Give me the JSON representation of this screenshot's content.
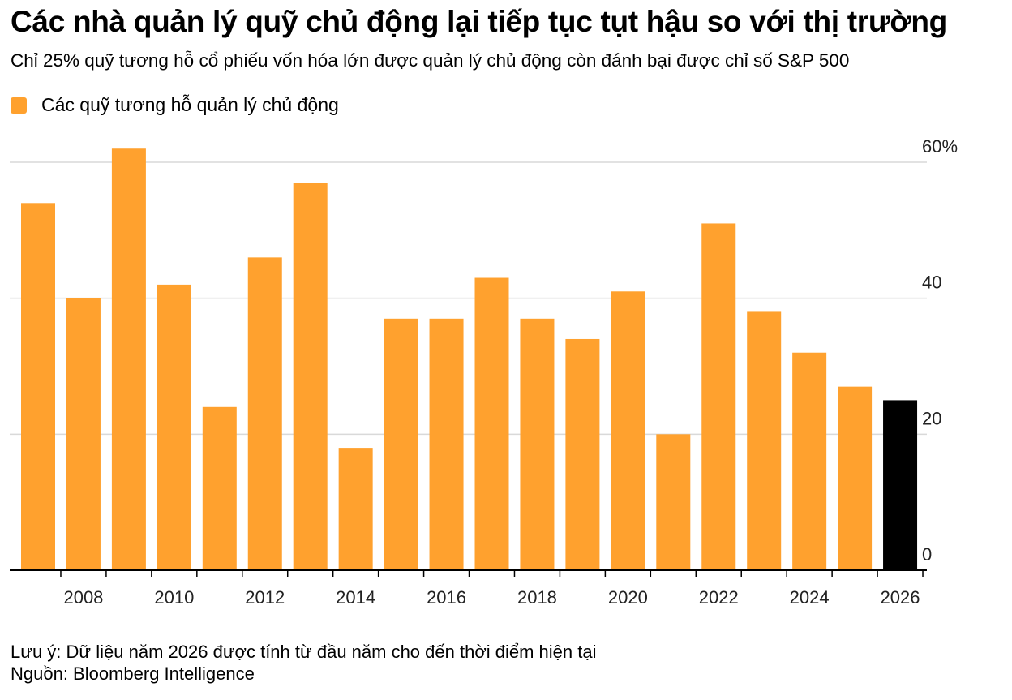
{
  "title": "Các nhà quản lý quỹ chủ động lại tiếp tục tụt hậu so với thị trường",
  "subtitle": "Chỉ 25% quỹ tương hỗ cổ phiếu vốn hóa lớn được quản lý chủ động còn đánh bại được chỉ số S&P 500",
  "legend": {
    "label": "Các quỹ tương hỗ quản lý chủ động",
    "color": "#FFA12E"
  },
  "note": "Lưu ý: Dữ liệu năm 2026 được tính từ đầu năm cho đến thời điểm hiện tại",
  "source": "Nguồn: Bloomberg Intelligence",
  "chart_data": {
    "type": "bar",
    "categories": [
      "2007",
      "2008",
      "2009",
      "2010",
      "2011",
      "2012",
      "2013",
      "2014",
      "2015",
      "2016",
      "2017",
      "2018",
      "2019",
      "2020",
      "2021",
      "2022",
      "2023",
      "2024",
      "2025",
      "2026"
    ],
    "values": [
      54,
      40,
      62,
      42,
      24,
      46,
      57,
      18,
      37,
      37,
      43,
      37,
      34,
      41,
      20,
      51,
      38,
      32,
      27,
      25
    ],
    "colors": {
      "default": "#FFA12E",
      "highlight": "#000000",
      "highlight_category": "2026",
      "grid": "#d9d9d9",
      "axis": "#000000"
    },
    "x_tick_labels": [
      "2008",
      "2010",
      "2012",
      "2014",
      "2016",
      "2018",
      "2020",
      "2022",
      "2024",
      "2026"
    ],
    "y_ticks": [
      0,
      20,
      40,
      60
    ],
    "y_tick_labels": [
      "0",
      "20",
      "40",
      "60%"
    ],
    "ylim": [
      0,
      60
    ],
    "y_axis_side": "right",
    "grid": true,
    "legend_position": "top-left"
  }
}
